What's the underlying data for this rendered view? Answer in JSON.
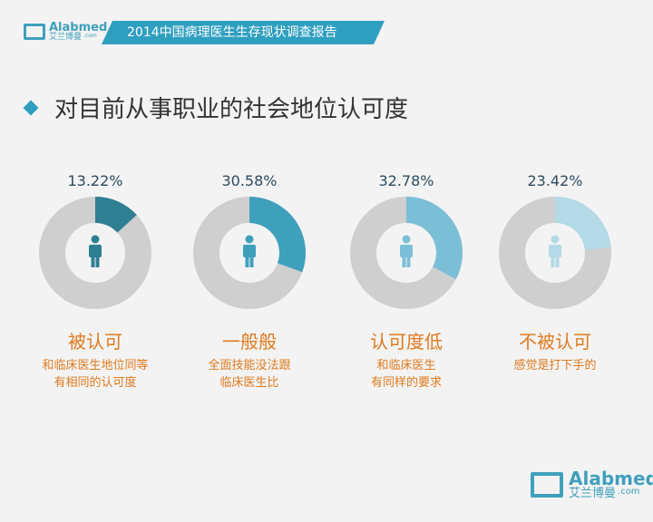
{
  "header": {
    "brand": "Alabmed",
    "brand_cn": "艾兰博曼",
    "brand_suffix": ".com",
    "title": "2014中国病理医生生存现状调查报告"
  },
  "heading": "对目前从事职业的社会地位认可度",
  "colors": {
    "gray": "#cfcfcf",
    "accent": "#2f9fc0",
    "label": "#e07a1f"
  },
  "items": [
    {
      "percent": "13.22%",
      "value": 13.22,
      "color": "#2f7f93",
      "label": "被认可",
      "desc1": "和临床医生地位同等",
      "desc2": "有相同的认可度"
    },
    {
      "percent": "30.58%",
      "value": 30.58,
      "color": "#3fa0bc",
      "label": "一般般",
      "desc1": "全面技能没法跟",
      "desc2": "临床医生比"
    },
    {
      "percent": "32.78%",
      "value": 32.78,
      "color": "#7bbfd7",
      "label": "认可度低",
      "desc1": "和临床医生",
      "desc2": "有同样的要求"
    },
    {
      "percent": "23.42%",
      "value": 23.42,
      "color": "#b4dae7",
      "label": "不被认可",
      "desc1": "感觉是打下手的",
      "desc2": ""
    }
  ]
}
